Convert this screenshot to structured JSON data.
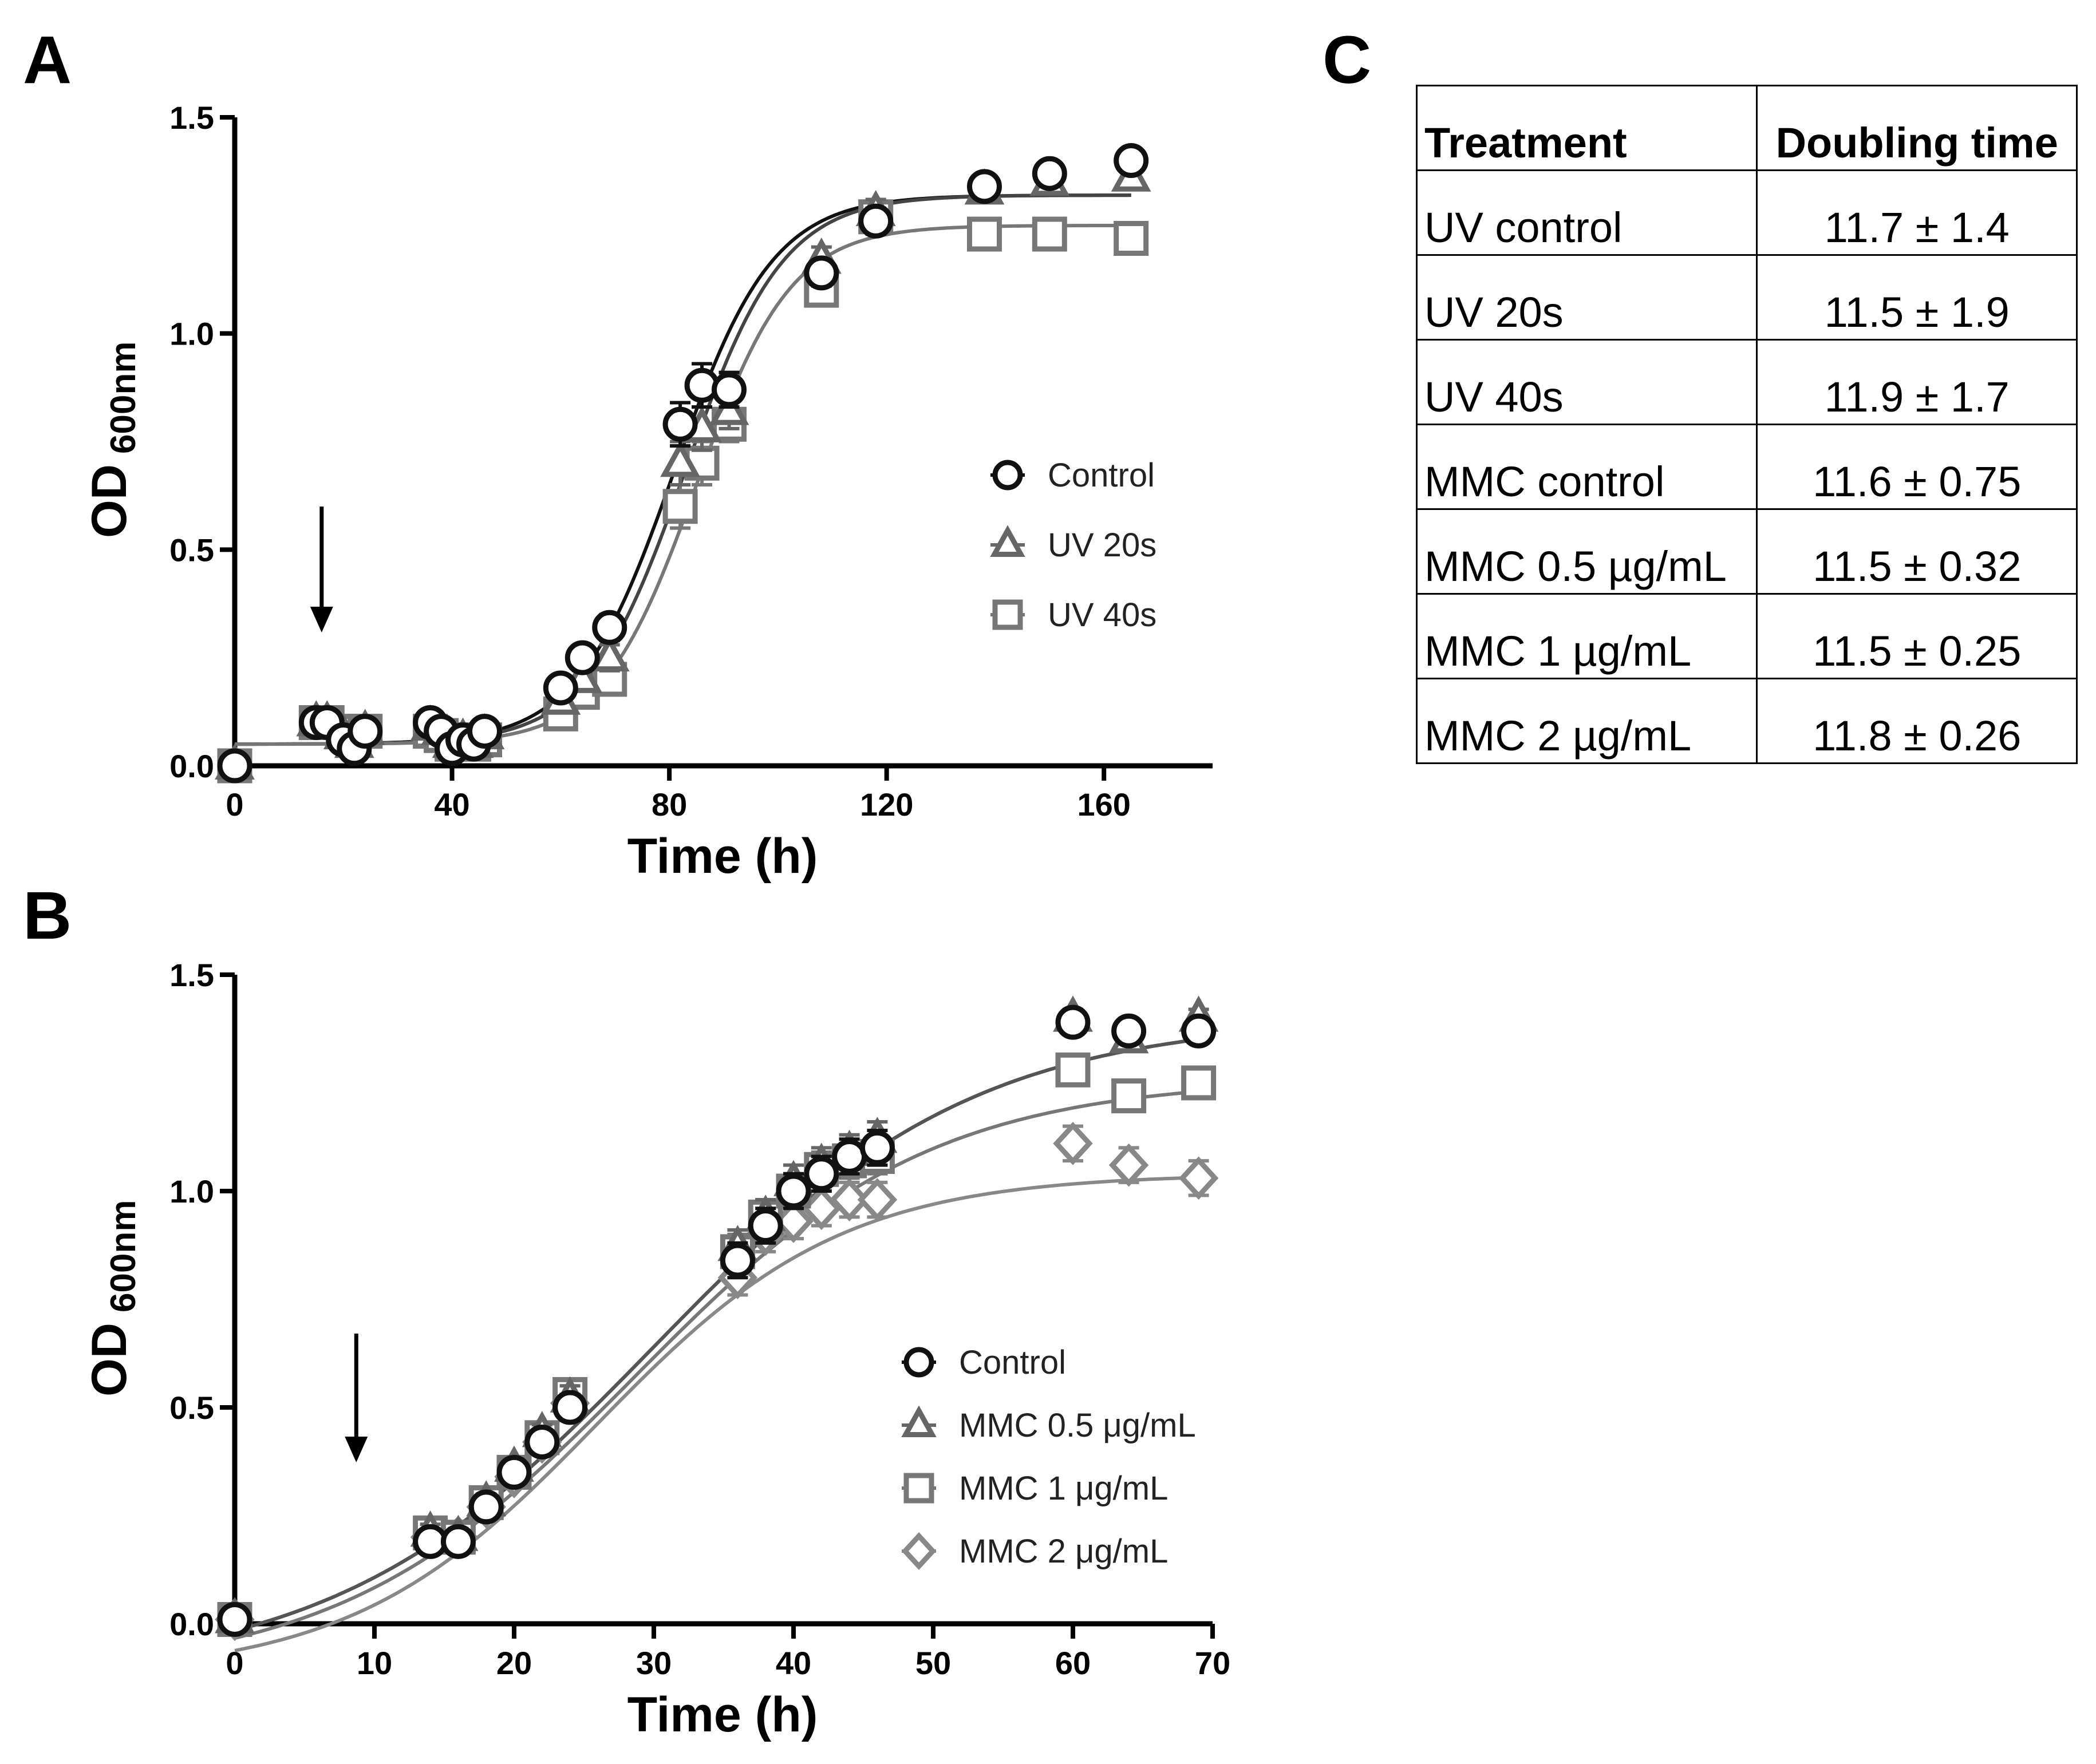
{
  "chart_data": [
    {
      "panel": "A",
      "type": "scatter",
      "title": "",
      "xlabel": "Time (h)",
      "ylabel": "OD",
      "ylabel_sub": "600nm",
      "xlim": [
        0,
        180
      ],
      "ylim": [
        0,
        1.5
      ],
      "xticks": [
        "0",
        "40",
        "80",
        "120",
        "160"
      ],
      "yticks": [
        "0.0",
        "0.5",
        "1.0",
        "1.5"
      ],
      "arrow_at_x": 16,
      "legend": {
        "position": "center-right",
        "entries": [
          "Control",
          "UV 20s",
          "UV 40s"
        ]
      },
      "fits": [
        {
          "series": "Control",
          "bottom": 0.05,
          "top": 1.32,
          "mid": 81,
          "slope": 9.0
        },
        {
          "series": "UV 20s",
          "bottom": 0.05,
          "top": 1.32,
          "mid": 83,
          "slope": 9.0
        },
        {
          "series": "UV 40s",
          "bottom": 0.05,
          "top": 1.25,
          "mid": 85,
          "slope": 8.7
        }
      ],
      "series": [
        {
          "name": "Control",
          "marker": "circle",
          "color": "#111111",
          "fitColor": "#111111",
          "x": [
            0,
            15,
            17,
            20,
            22,
            24,
            36,
            38,
            40,
            42,
            44,
            46,
            60,
            64,
            69,
            82,
            86,
            91,
            108,
            118,
            138,
            150,
            165
          ],
          "y": [
            0.0,
            0.1,
            0.1,
            0.06,
            0.04,
            0.08,
            0.1,
            0.08,
            0.04,
            0.06,
            0.05,
            0.08,
            0.18,
            0.25,
            0.32,
            0.79,
            0.88,
            0.87,
            1.14,
            1.26,
            1.34,
            1.37,
            1.4
          ],
          "err": [
            0.02,
            0.02,
            0.02,
            0.02,
            0.02,
            0.02,
            0.02,
            0.02,
            0.02,
            0.02,
            0.02,
            0.02,
            0.02,
            0.02,
            0.03,
            0.05,
            0.05,
            0.04,
            0.03,
            0.03,
            0.02,
            0.02,
            0.02
          ]
        },
        {
          "name": "UV 20s",
          "marker": "triangle",
          "color": "#666666",
          "fitColor": "#444444",
          "x": [
            0,
            15,
            17,
            20,
            22,
            24,
            36,
            38,
            40,
            42,
            44,
            46,
            60,
            64,
            69,
            82,
            86,
            91,
            108,
            118,
            138,
            150,
            165
          ],
          "y": [
            0.0,
            0.1,
            0.1,
            0.07,
            0.05,
            0.08,
            0.09,
            0.08,
            0.05,
            0.06,
            0.05,
            0.07,
            0.15,
            0.2,
            0.25,
            0.7,
            0.78,
            0.82,
            1.17,
            1.28,
            1.33,
            1.35,
            1.36
          ],
          "err": [
            0.02,
            0.02,
            0.02,
            0.02,
            0.02,
            0.02,
            0.02,
            0.02,
            0.02,
            0.02,
            0.02,
            0.02,
            0.02,
            0.02,
            0.03,
            0.05,
            0.05,
            0.04,
            0.03,
            0.03,
            0.02,
            0.02,
            0.02
          ]
        },
        {
          "name": "UV 40s",
          "marker": "square",
          "color": "#777777",
          "fitColor": "#777777",
          "x": [
            0,
            15,
            17,
            20,
            22,
            24,
            36,
            38,
            40,
            42,
            44,
            46,
            60,
            64,
            69,
            82,
            86,
            91,
            108,
            118,
            138,
            150,
            165
          ],
          "y": [
            0.0,
            0.1,
            0.1,
            0.08,
            0.06,
            0.08,
            0.08,
            0.07,
            0.05,
            0.06,
            0.05,
            0.06,
            0.12,
            0.17,
            0.2,
            0.6,
            0.7,
            0.79,
            1.1,
            1.27,
            1.23,
            1.23,
            1.22
          ],
          "err": [
            0.02,
            0.02,
            0.02,
            0.02,
            0.02,
            0.02,
            0.02,
            0.02,
            0.02,
            0.02,
            0.02,
            0.02,
            0.02,
            0.02,
            0.03,
            0.05,
            0.05,
            0.04,
            0.03,
            0.03,
            0.03,
            0.03,
            0.03
          ]
        }
      ]
    },
    {
      "panel": "B",
      "type": "scatter",
      "title": "",
      "xlabel": "Time (h)",
      "ylabel": "OD",
      "ylabel_sub": "600nm",
      "xlim": [
        0,
        70
      ],
      "ylim": [
        0,
        1.5
      ],
      "xticks": [
        "0",
        "10",
        "20",
        "30",
        "40",
        "50",
        "60",
        "70"
      ],
      "yticks": [
        "0.0",
        "0.5",
        "1.0",
        "1.5"
      ],
      "arrow_at_x": 8.7,
      "legend": {
        "position": "bottom-right",
        "entries": [
          "Control",
          "MMC 0.5 μg/mL",
          "MMC 1 μg/mL",
          "MMC 2 μg/mL"
        ]
      },
      "fits": [
        {
          "series": "Control",
          "bottom": -0.12,
          "top": 1.4,
          "mid": 30,
          "slope": 11.5
        },
        {
          "series": "MMC 0.5 μg/mL",
          "bottom": -0.12,
          "top": 1.4,
          "mid": 30,
          "slope": 11.5
        },
        {
          "series": "MMC 1 μg/mL",
          "bottom": -0.12,
          "top": 1.26,
          "mid": 28.6,
          "slope": 10.6
        },
        {
          "series": "MMC 2 μg/mL",
          "bottom": -0.12,
          "top": 1.04,
          "mid": 25.9,
          "slope": 8.8
        }
      ],
      "series": [
        {
          "name": "Control",
          "marker": "circle",
          "color": "#111111",
          "fitColor": "#111111",
          "x": [
            0,
            14,
            16,
            18,
            20,
            22,
            24,
            36,
            38,
            40,
            42,
            44,
            46,
            60,
            64,
            69
          ],
          "y": [
            0.01,
            0.19,
            0.19,
            0.27,
            0.35,
            0.42,
            0.5,
            0.84,
            0.92,
            1.0,
            1.04,
            1.08,
            1.1,
            1.39,
            1.37,
            1.37
          ],
          "err": [
            0.01,
            0.02,
            0.02,
            0.02,
            0.02,
            0.02,
            0.03,
            0.04,
            0.04,
            0.04,
            0.04,
            0.04,
            0.04,
            0.02,
            0.02,
            0.02
          ]
        },
        {
          "name": "MMC 0.5 μg/mL",
          "marker": "triangle",
          "color": "#666666",
          "fitColor": "#555555",
          "x": [
            0,
            14,
            16,
            18,
            20,
            22,
            24,
            36,
            38,
            40,
            42,
            44,
            46,
            60,
            64,
            69
          ],
          "y": [
            0.01,
            0.21,
            0.2,
            0.28,
            0.36,
            0.44,
            0.52,
            0.87,
            0.94,
            1.02,
            1.06,
            1.09,
            1.12,
            1.4,
            1.35,
            1.4
          ],
          "err": [
            0.01,
            0.02,
            0.02,
            0.02,
            0.02,
            0.02,
            0.03,
            0.04,
            0.04,
            0.04,
            0.04,
            0.04,
            0.04,
            0.02,
            0.02,
            0.02
          ]
        },
        {
          "name": "MMC 1 μg/mL",
          "marker": "square",
          "color": "#777777",
          "fitColor": "#777777",
          "x": [
            0,
            14,
            16,
            18,
            20,
            22,
            24,
            36,
            38,
            40,
            42,
            44,
            46,
            60,
            64,
            69
          ],
          "y": [
            0.01,
            0.21,
            0.2,
            0.28,
            0.35,
            0.43,
            0.53,
            0.86,
            0.94,
            1.0,
            1.05,
            1.07,
            1.08,
            1.28,
            1.22,
            1.25
          ],
          "err": [
            0.01,
            0.02,
            0.02,
            0.02,
            0.02,
            0.02,
            0.03,
            0.04,
            0.04,
            0.04,
            0.04,
            0.04,
            0.04,
            0.02,
            0.02,
            0.02
          ]
        },
        {
          "name": "MMC 2 μg/mL",
          "marker": "diamond",
          "color": "#888888",
          "fitColor": "#888888",
          "x": [
            0,
            14,
            16,
            18,
            20,
            22,
            24,
            36,
            38,
            40,
            42,
            44,
            46,
            60,
            64,
            69
          ],
          "y": [
            0.01,
            0.2,
            0.2,
            0.27,
            0.34,
            0.42,
            0.51,
            0.8,
            0.9,
            0.93,
            0.96,
            0.98,
            0.98,
            1.11,
            1.06,
            1.03
          ],
          "err": [
            0.01,
            0.02,
            0.02,
            0.02,
            0.02,
            0.02,
            0.03,
            0.04,
            0.04,
            0.04,
            0.04,
            0.04,
            0.04,
            0.04,
            0.04,
            0.04
          ]
        }
      ]
    },
    {
      "panel": "C",
      "type": "table",
      "columns": [
        "Treatment",
        "Doubling time"
      ],
      "rows": [
        {
          "treatment": "UV control",
          "doubling": "11.7 ± 1.4"
        },
        {
          "treatment": "UV 20s",
          "doubling": "11.5 ± 1.9"
        },
        {
          "treatment": "UV 40s",
          "doubling": "11.9 ± 1.7"
        },
        {
          "treatment": "MMC control",
          "doubling": "11.6 ± 0.75"
        },
        {
          "treatment": "MMC 0.5 µg/mL",
          "doubling": "11.5 ± 0.32"
        },
        {
          "treatment": "MMC 1 µg/mL",
          "doubling": "11.5 ± 0.25"
        },
        {
          "treatment": "MMC 2 µg/mL",
          "doubling": "11.8 ± 0.26"
        }
      ]
    }
  ],
  "panel_labels": {
    "a": "A",
    "b": "B",
    "c": "C"
  }
}
